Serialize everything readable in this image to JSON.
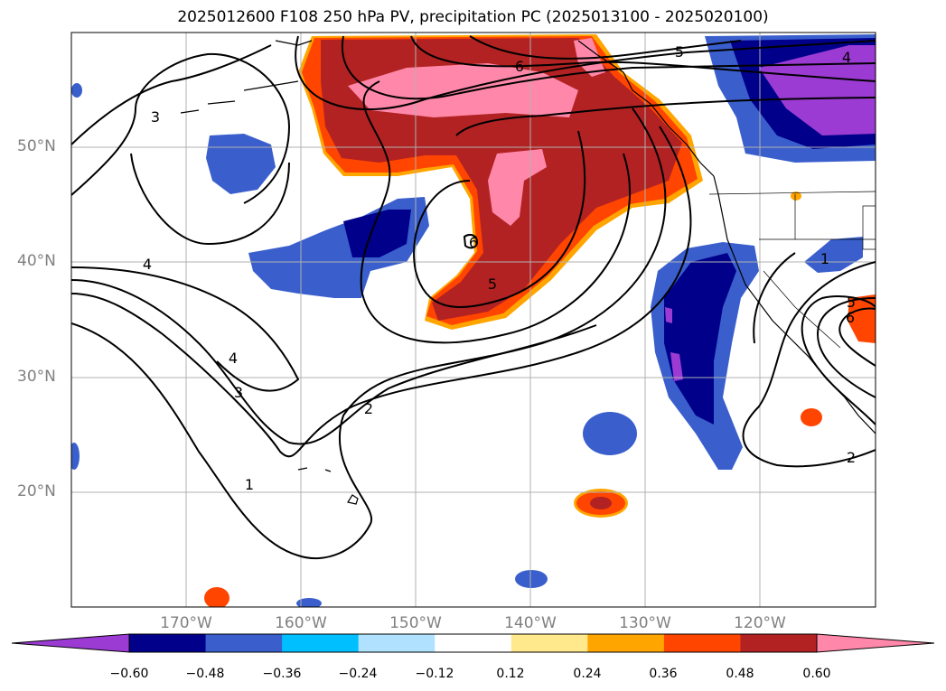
{
  "title": "2025012600 F108 250 hPa PV, precipitation PC (2025013100 - 2025020100)",
  "latitude_labels": [
    "50°N",
    "40°N",
    "30°N",
    "20°N"
  ],
  "longitude_labels": [
    "170°W",
    "160°W",
    "150°W",
    "140°W",
    "130°W",
    "120°W"
  ],
  "contour_labels": [
    "6",
    "5",
    "4",
    "3",
    "4",
    "4",
    "3",
    "2",
    "1",
    "6",
    "5",
    "2",
    "1",
    "5",
    "6"
  ],
  "colorbar": {
    "ticks": [
      "−0.60",
      "−0.48",
      "−0.36",
      "−0.24",
      "−0.12",
      "0.12",
      "0.24",
      "0.36",
      "0.48",
      "0.60"
    ],
    "colors": [
      "#9b3bd3",
      "#00008b",
      "#3a5fcd",
      "#00bfff",
      "#b0e2ff",
      "#ffffff",
      "#ffe98c",
      "#ffa500",
      "#ff4500",
      "#b22222",
      "#ff88aa"
    ]
  },
  "chart_data": {
    "type": "heatmap",
    "title": "2025012600 F108 250 hPa PV, precipitation PC (2025013100 - 2025020100)",
    "extent": {
      "lon_range": [
        -180,
        -110
      ],
      "lat_range": [
        10,
        60
      ]
    },
    "fields": [
      "250 hPa PV (contours)",
      "precipitation PC (shaded)"
    ],
    "contour_levels": [
      1,
      2,
      3,
      4,
      5,
      6
    ],
    "color_levels": [
      -0.6,
      -0.48,
      -0.36,
      -0.24,
      -0.12,
      0.12,
      0.24,
      0.36,
      0.48,
      0.6
    ],
    "grid": true
  }
}
